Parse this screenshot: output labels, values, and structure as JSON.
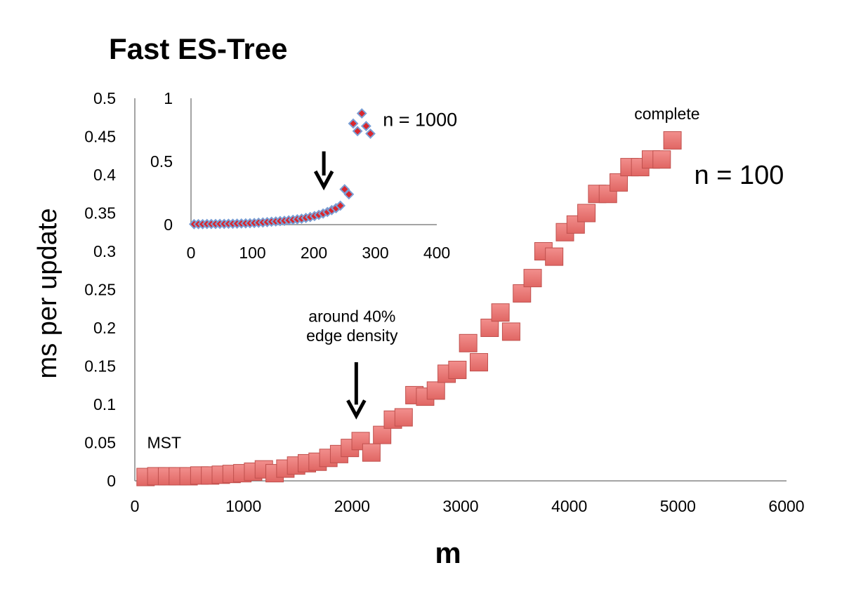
{
  "chart_data": [
    {
      "type": "scatter",
      "title": "Fast ES-Tree",
      "xlabel": "m",
      "ylabel": "ms per update",
      "xlim": [
        0,
        6000
      ],
      "ylim": [
        0,
        0.5
      ],
      "xticks": [
        "0",
        "1000",
        "2000",
        "3000",
        "4000",
        "5000",
        "6000"
      ],
      "yticks": [
        "0",
        "0.05",
        "0.1",
        "0.15",
        "0.2",
        "0.25",
        "0.3",
        "0.35",
        "0.4",
        "0.45",
        "0.5"
      ],
      "grid": false,
      "marker": "square",
      "colors": {
        "fill": "#e8706e",
        "stroke": "#c0504d"
      },
      "series": [
        {
          "name": "n = 100",
          "x": [
            99,
            198,
            297,
            396,
            495,
            594,
            693,
            792,
            891,
            990,
            1089,
            1188,
            1287,
            1386,
            1485,
            1584,
            1683,
            1782,
            1881,
            1980,
            2079,
            2178,
            2277,
            2376,
            2475,
            2574,
            2673,
            2772,
            2871,
            2970,
            3069,
            3168,
            3267,
            3366,
            3465,
            3564,
            3663,
            3762,
            3861,
            3960,
            4059,
            4158,
            4257,
            4356,
            4455,
            4554,
            4653,
            4752,
            4851,
            4950
          ],
          "y": [
            0.005,
            0.006,
            0.006,
            0.006,
            0.006,
            0.007,
            0.007,
            0.008,
            0.009,
            0.01,
            0.012,
            0.015,
            0.01,
            0.016,
            0.02,
            0.023,
            0.025,
            0.03,
            0.035,
            0.043,
            0.052,
            0.037,
            0.06,
            0.08,
            0.083,
            0.112,
            0.11,
            0.118,
            0.14,
            0.145,
            0.18,
            0.155,
            0.2,
            0.22,
            0.195,
            0.245,
            0.265,
            0.3,
            0.293,
            0.325,
            0.335,
            0.35,
            0.375,
            0.375,
            0.39,
            0.41,
            0.41,
            0.42,
            0.42,
            0.445
          ]
        }
      ],
      "annotations": [
        {
          "text": "MST",
          "x": 100,
          "y": 0.05
        },
        {
          "text": "around 40%",
          "x": 2000,
          "y": 0.215
        },
        {
          "text": "edge density",
          "x": 2000,
          "y": 0.19
        },
        {
          "text": "complete",
          "x": 4900,
          "y": 0.48
        },
        {
          "text": "n = 100",
          "x": 5150,
          "y": 0.4
        }
      ],
      "arrow": {
        "x": 2000,
        "y_from": 0.155,
        "y_to": 0.085
      }
    },
    {
      "type": "scatter",
      "xlim": [
        0,
        400
      ],
      "ylim": [
        0,
        1
      ],
      "xticks": [
        "0",
        "100",
        "200",
        "300",
        "400"
      ],
      "yticks": [
        "0",
        "0.5",
        "1"
      ],
      "grid": false,
      "marker": "diamond",
      "colors": {
        "fill": "#d9262d",
        "stroke": "#7a9ed4"
      },
      "series": [
        {
          "name": "n = 1000",
          "x": [
            5,
            12,
            19,
            26,
            33,
            40,
            47,
            54,
            61,
            68,
            75,
            82,
            89,
            96,
            103,
            110,
            117,
            124,
            131,
            138,
            145,
            152,
            159,
            166,
            173,
            180,
            187,
            194,
            201,
            208,
            215,
            222,
            229,
            236,
            243,
            250,
            257,
            264,
            271,
            278,
            285,
            292
          ],
          "y": [
            0.004,
            0.004,
            0.004,
            0.005,
            0.005,
            0.005,
            0.006,
            0.006,
            0.007,
            0.007,
            0.008,
            0.009,
            0.01,
            0.011,
            0.013,
            0.015,
            0.017,
            0.02,
            0.023,
            0.025,
            0.028,
            0.03,
            0.034,
            0.038,
            0.042,
            0.047,
            0.053,
            0.06,
            0.068,
            0.077,
            0.088,
            0.1,
            0.115,
            0.13,
            0.15,
            0.28,
            0.24,
            0.8,
            0.74,
            0.88,
            0.78,
            0.72
          ]
        }
      ],
      "annotations": [
        {
          "text": "n = 1000",
          "x": 310,
          "y": 0.83
        }
      ],
      "arrow": {
        "x": 215,
        "y_from": 0.58,
        "y_to": 0.3
      }
    }
  ]
}
